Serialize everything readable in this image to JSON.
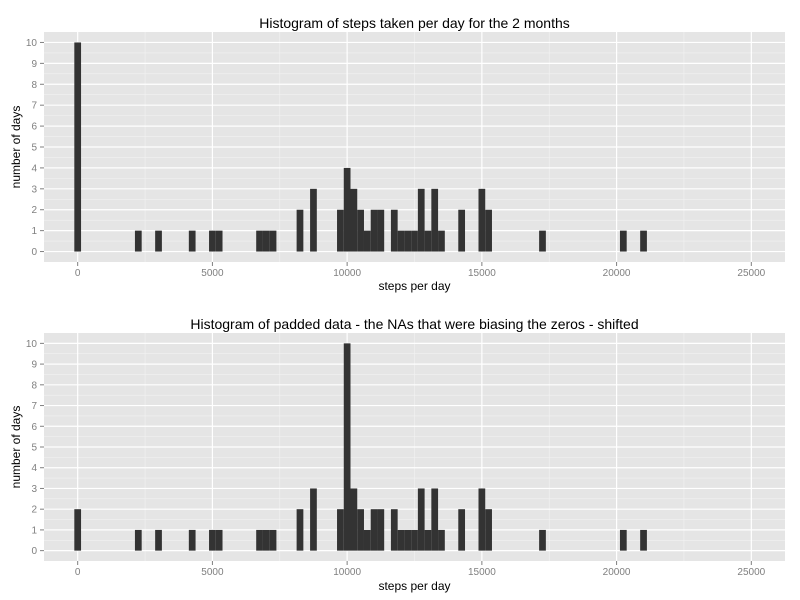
{
  "chart_data": [
    {
      "type": "bar",
      "title": "Histogram of steps taken per day for the 2 months",
      "xlabel": "steps per day",
      "ylabel": "number of days",
      "xlim": [
        -1250,
        26250
      ],
      "ylim": [
        -0.5,
        10.5
      ],
      "x_ticks": [
        0,
        5000,
        10000,
        15000,
        20000,
        25000
      ],
      "x_tick_labels": [
        "0",
        "5000",
        "10000",
        "15000",
        "20000",
        "25000"
      ],
      "y_ticks": [
        0,
        1,
        2,
        3,
        4,
        5,
        6,
        7,
        8,
        9,
        10
      ],
      "y_tick_labels": [
        "0",
        "1",
        "2",
        "3",
        "4",
        "5",
        "6",
        "7",
        "8",
        "9",
        "10"
      ],
      "grid": true,
      "bin_width": 250,
      "x": [
        0,
        2250,
        3000,
        4250,
        5000,
        5250,
        6750,
        7000,
        7250,
        8250,
        8750,
        9750,
        10000,
        10250,
        10500,
        10750,
        11000,
        11250,
        11750,
        12000,
        12250,
        12500,
        12750,
        13000,
        13250,
        13500,
        14250,
        15000,
        15250,
        17250,
        20250,
        21000
      ],
      "values": [
        10,
        1,
        1,
        1,
        1,
        1,
        1,
        1,
        1,
        2,
        3,
        2,
        4,
        3,
        2,
        1,
        2,
        2,
        2,
        1,
        1,
        1,
        3,
        1,
        3,
        1,
        2,
        3,
        2,
        1,
        1,
        1
      ]
    },
    {
      "type": "bar",
      "title": "Histogram  of padded data - the NAs that were biasing the zeros - shifted",
      "xlabel": "steps per day",
      "ylabel": "number of days",
      "xlim": [
        -1250,
        26250
      ],
      "ylim": [
        -0.5,
        10.5
      ],
      "x_ticks": [
        0,
        5000,
        10000,
        15000,
        20000,
        25000
      ],
      "x_tick_labels": [
        "0",
        "5000",
        "10000",
        "15000",
        "20000",
        "25000"
      ],
      "y_ticks": [
        0,
        1,
        2,
        3,
        4,
        5,
        6,
        7,
        8,
        9,
        10
      ],
      "y_tick_labels": [
        "0",
        "1",
        "2",
        "3",
        "4",
        "5",
        "6",
        "7",
        "8",
        "9",
        "10"
      ],
      "grid": true,
      "bin_width": 250,
      "x": [
        0,
        2250,
        3000,
        4250,
        5000,
        5250,
        6750,
        7000,
        7250,
        8250,
        8750,
        9750,
        10000,
        10250,
        10500,
        10750,
        11000,
        11250,
        11750,
        12000,
        12250,
        12500,
        12750,
        13000,
        13250,
        13500,
        14250,
        15000,
        15250,
        17250,
        20250,
        21000
      ],
      "values": [
        2,
        1,
        1,
        1,
        1,
        1,
        1,
        1,
        1,
        2,
        3,
        2,
        10,
        3,
        2,
        1,
        2,
        2,
        2,
        1,
        1,
        1,
        3,
        1,
        3,
        1,
        2,
        3,
        2,
        1,
        1,
        1
      ]
    }
  ]
}
